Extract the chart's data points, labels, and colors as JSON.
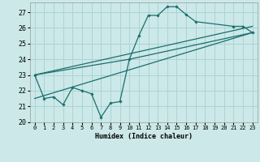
{
  "xlabel": "Humidex (Indice chaleur)",
  "xlim": [
    -0.5,
    23.5
  ],
  "ylim": [
    20,
    27.6
  ],
  "yticks": [
    20,
    21,
    22,
    23,
    24,
    25,
    26,
    27
  ],
  "xticks": [
    0,
    1,
    2,
    3,
    4,
    5,
    6,
    7,
    8,
    9,
    10,
    11,
    12,
    13,
    14,
    15,
    16,
    17,
    18,
    19,
    20,
    21,
    22,
    23
  ],
  "bg_color": "#cce8e8",
  "grid_color": "#aad4d4",
  "line_color": "#1a6e6e",
  "series_main": {
    "x": [
      0,
      1,
      2,
      3,
      4,
      5,
      6,
      7,
      8,
      9,
      10,
      11,
      12,
      13,
      14,
      15,
      16,
      17,
      21,
      22,
      23
    ],
    "y": [
      23.0,
      21.5,
      21.6,
      21.1,
      22.2,
      22.0,
      21.8,
      20.3,
      21.2,
      21.3,
      24.0,
      25.5,
      26.8,
      26.8,
      27.35,
      27.35,
      26.85,
      26.4,
      26.1,
      26.1,
      25.7
    ]
  },
  "line_top": {
    "x": [
      0,
      23
    ],
    "y": [
      23.0,
      26.1
    ]
  },
  "line_bottom": {
    "x": [
      0,
      23
    ],
    "y": [
      21.5,
      25.7
    ]
  },
  "line_mid": {
    "x": [
      0,
      10,
      23
    ],
    "y": [
      23.0,
      24.0,
      25.7
    ]
  }
}
